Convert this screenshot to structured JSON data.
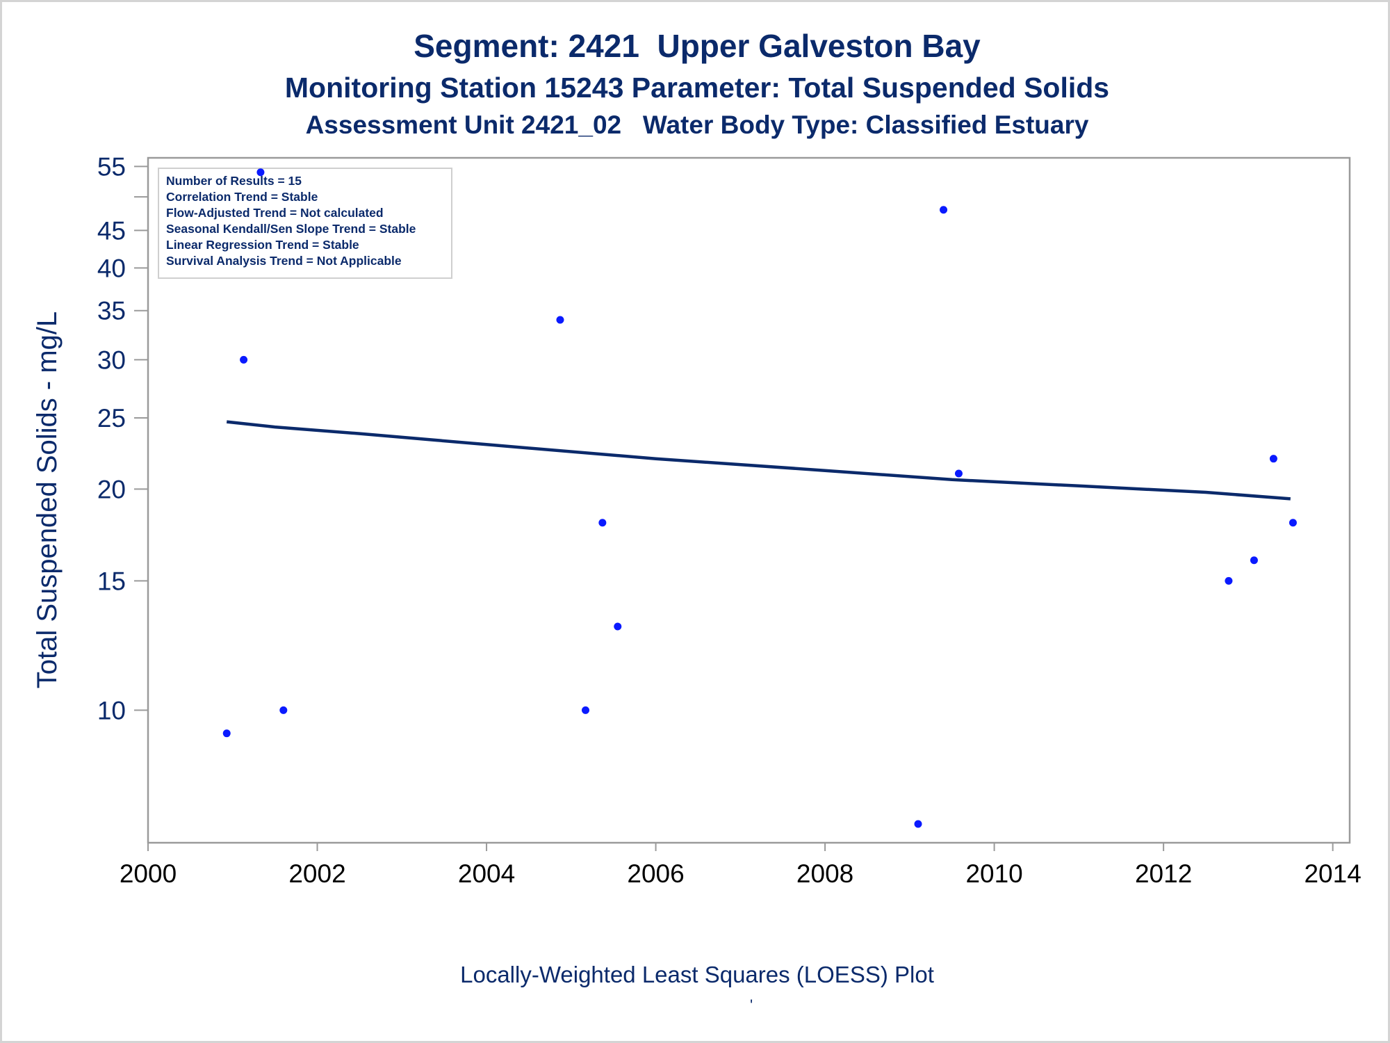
{
  "chart_data": {
    "type": "scatter",
    "title": "Segment: 2421  Upper Galveston Bay",
    "subtitles": [
      "Monitoring Station 15243 Parameter: Total Suspended Solids",
      "Assessment Unit 2421_02   Water Body Type: Classified Estuary"
    ],
    "xlabel": "",
    "ylabel": "Total Suspended Solids - mg/L",
    "y_scale": "log",
    "xlim": [
      2000,
      2014.2
    ],
    "ylim": [
      6.6,
      56.5
    ],
    "x_ticks": [
      2000,
      2002,
      2004,
      2006,
      2008,
      2010,
      2012,
      2014
    ],
    "y_ticks": [
      10,
      15,
      20,
      25,
      30,
      35,
      40,
      45,
      55
    ],
    "y_minor_ticks": [
      50
    ],
    "grid": false,
    "legend_position": "top-left",
    "info_box": [
      "Number of Results = 15",
      "Correlation Trend = Stable",
      "Flow-Adjusted Trend = Not calculated",
      "Seasonal Kendall/Sen Slope Trend = Stable",
      "Linear Regression Trend = Stable",
      "Survival Analysis Trend = Not Applicable"
    ],
    "footnote": "Locally-Weighted Least Squares (LOESS) Plot",
    "stray_mark": "'",
    "points": [
      {
        "x": 2000.93,
        "y": 9.3
      },
      {
        "x": 2001.13,
        "y": 30
      },
      {
        "x": 2001.33,
        "y": 54
      },
      {
        "x": 2001.6,
        "y": 10
      },
      {
        "x": 2004.87,
        "y": 34
      },
      {
        "x": 2005.17,
        "y": 10
      },
      {
        "x": 2005.37,
        "y": 18
      },
      {
        "x": 2005.55,
        "y": 13
      },
      {
        "x": 2009.1,
        "y": 7
      },
      {
        "x": 2009.4,
        "y": 48
      },
      {
        "x": 2009.58,
        "y": 21
      },
      {
        "x": 2012.77,
        "y": 15
      },
      {
        "x": 2013.07,
        "y": 16
      },
      {
        "x": 2013.3,
        "y": 22
      },
      {
        "x": 2013.53,
        "y": 18
      }
    ],
    "loess_line": {
      "x": [
        2000.93,
        2001.5,
        2002.5,
        2004,
        2006,
        2008,
        2009.5,
        2011,
        2012.5,
        2013.5
      ],
      "y": [
        24.7,
        24.3,
        23.8,
        23.0,
        22.0,
        21.2,
        20.6,
        20.2,
        19.8,
        19.4
      ]
    },
    "colors": {
      "text": "#0b2a6b",
      "points": "#0a1aff",
      "line": "#0b2a6b",
      "axis_frame": "#9a9a9a",
      "info_box_border": "#cfcfcf"
    }
  }
}
